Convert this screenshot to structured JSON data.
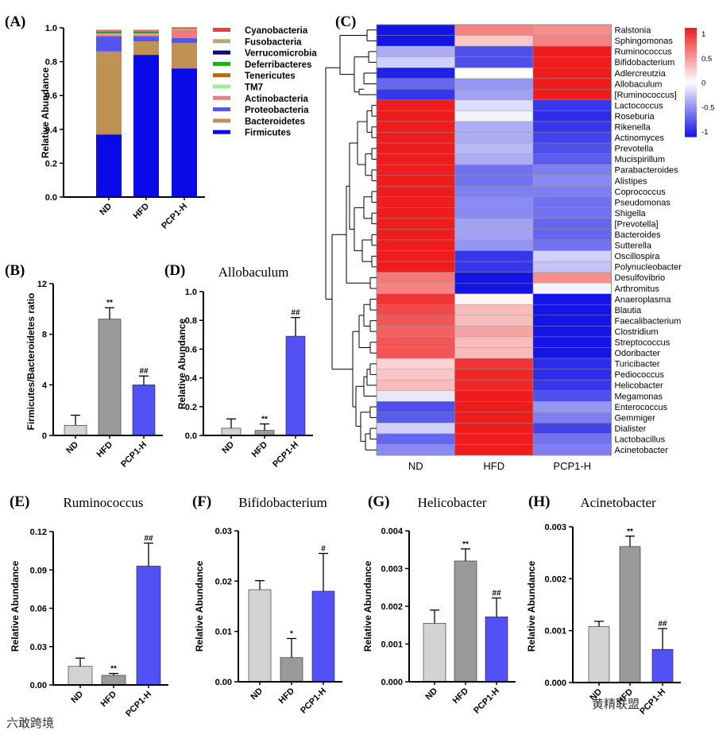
{
  "colors": {
    "nd": "#d3d3d3",
    "hfd": "#9a9a9a",
    "pcp": "#5151f5",
    "heat_low": "#1414e6",
    "heat_high": "#ee1c1c"
  },
  "groups": [
    "ND",
    "HFD",
    "PCP1-H"
  ],
  "panels": {
    "A": {
      "label": "(A)",
      "ylabel": "Relative Abundance"
    },
    "B": {
      "label": "(B)",
      "ylabel": "Firmicutes/Bacteroidetes ratio"
    },
    "C": {
      "label": "(C)"
    },
    "D": {
      "label": "(D)",
      "title": "Allobaculum",
      "ylabel": "Relative Abundance"
    },
    "E": {
      "label": "(E)",
      "title": "Ruminococcus",
      "ylabel": "Relative Abundance"
    },
    "F": {
      "label": "(F)",
      "title": "Bifidobacterium",
      "ylabel": "Relative Abundance"
    },
    "G": {
      "label": "(G)",
      "title": "Helicobacter",
      "ylabel": "Relative Abundance"
    },
    "H": {
      "label": "(H)",
      "title": "Acinetobacter",
      "ylabel": "Relative Abundance"
    }
  },
  "watermark": {
    "left": "六敢跨境",
    "right": "黄精联盟"
  },
  "chart_data": [
    {
      "id": "A",
      "type": "bar",
      "stacked": true,
      "ylabel": "Relative Abundance",
      "categories": [
        "ND",
        "HFD",
        "PCP1-H"
      ],
      "ylim": [
        0,
        1.0
      ],
      "yticks": [
        "0.0",
        "0.2",
        "0.4",
        "0.6",
        "0.8",
        "1.0"
      ],
      "series": [
        {
          "name": "Firmicutes",
          "color": "#0a0ae8",
          "values": [
            0.37,
            0.84,
            0.76
          ]
        },
        {
          "name": "Bacteroidetes",
          "color": "#c09155",
          "values": [
            0.49,
            0.08,
            0.15
          ]
        },
        {
          "name": "Proteobacteria",
          "color": "#5555ee",
          "values": [
            0.09,
            0.03,
            0.03
          ]
        },
        {
          "name": "Actinobacteria",
          "color": "#f27a7a",
          "values": [
            0.01,
            0.01,
            0.05
          ]
        },
        {
          "name": "TM7",
          "color": "#9af09a",
          "values": [
            0.005,
            0.005,
            0.002
          ]
        },
        {
          "name": "Tenericutes",
          "color": "#b86a1a",
          "values": [
            0.005,
            0.005,
            0.002
          ]
        },
        {
          "name": "Deferribacteres",
          "color": "#19b019",
          "values": [
            0.005,
            0.005,
            0.002
          ]
        },
        {
          "name": "Verrucomicrobia",
          "color": "#0a0a7a",
          "values": [
            0.003,
            0.003,
            0.002
          ]
        },
        {
          "name": "Fusobacteria",
          "color": "#b5a878",
          "values": [
            0.005,
            0.005,
            0.002
          ]
        },
        {
          "name": "Cyanobacteria",
          "color": "#e84040",
          "values": [
            0.005,
            0.005,
            0.003
          ]
        }
      ]
    },
    {
      "id": "B",
      "type": "bar",
      "ylabel": "Firmicutes/Bacteroidetes ratio",
      "categories": [
        "ND",
        "HFD",
        "PCP1-H"
      ],
      "ylim": [
        0,
        12
      ],
      "yticks": [
        "0",
        "4",
        "8",
        "12"
      ],
      "values": [
        0.8,
        9.2,
        4.0
      ],
      "errors": [
        0.8,
        0.9,
        0.7
      ],
      "annotations": [
        "",
        "**",
        "##"
      ]
    },
    {
      "id": "D",
      "type": "bar",
      "title": "Allobaculum",
      "ylabel": "Relative Abundance",
      "categories": [
        "ND",
        "HFD",
        "PCP1-H"
      ],
      "ylim": [
        0,
        1.0
      ],
      "yticks": [
        "0.0",
        "0.2",
        "0.4",
        "0.6",
        "0.8",
        "1.0"
      ],
      "values": [
        0.05,
        0.035,
        0.69
      ],
      "errors": [
        0.065,
        0.045,
        0.13
      ],
      "annotations": [
        "",
        "**",
        "##"
      ]
    },
    {
      "id": "E",
      "type": "bar",
      "title": "Ruminococcus",
      "ylabel": "Relative Abundance",
      "categories": [
        "ND",
        "HFD",
        "PCP1-H"
      ],
      "ylim": [
        0,
        0.12
      ],
      "yticks": [
        "0.00",
        "0.03",
        "0.06",
        "0.09",
        "0.12"
      ],
      "values": [
        0.0145,
        0.0075,
        0.093
      ],
      "errors": [
        0.0065,
        0.0015,
        0.018
      ],
      "annotations": [
        "",
        "**",
        "##"
      ]
    },
    {
      "id": "F",
      "type": "bar",
      "title": "Bifidobacterium",
      "ylabel": "Relative Abundance",
      "categories": [
        "ND",
        "HFD",
        "PCP1-H"
      ],
      "ylim": [
        0,
        0.03
      ],
      "yticks": [
        "0.00",
        "0.01",
        "0.02",
        "0.03"
      ],
      "values": [
        0.0183,
        0.0048,
        0.018
      ],
      "errors": [
        0.0018,
        0.0038,
        0.0075
      ],
      "annotations": [
        "",
        "*",
        "#"
      ]
    },
    {
      "id": "G",
      "type": "bar",
      "title": "Helicobacter",
      "ylabel": "Relative Abundance",
      "categories": [
        "ND",
        "HFD",
        "PCP1-H"
      ],
      "ylim": [
        0,
        0.004
      ],
      "yticks": [
        "0.000",
        "0.001",
        "0.002",
        "0.003",
        "0.004"
      ],
      "values": [
        0.00155,
        0.0032,
        0.00172
      ],
      "errors": [
        0.00035,
        0.00032,
        0.0005
      ],
      "annotations": [
        "",
        "**",
        "##"
      ]
    },
    {
      "id": "H",
      "type": "bar",
      "title": "Acinetobacter",
      "ylabel": "Relative Abundance",
      "categories": [
        "ND",
        "HFD",
        "PCP1-H"
      ],
      "ylim": [
        0,
        0.003
      ],
      "yticks": [
        "0.000",
        "0.001",
        "0.002",
        "0.003"
      ],
      "values": [
        0.00108,
        0.00262,
        0.00064
      ],
      "errors": [
        0.0001,
        0.0002,
        0.0004
      ],
      "annotations": [
        "",
        "**",
        "##"
      ]
    },
    {
      "id": "C",
      "type": "heatmap",
      "columns": [
        "ND",
        "HFD",
        "PCP1-H"
      ],
      "colorbar": {
        "ticks": [
          "1",
          "0.5",
          "0",
          "-0.5",
          "-1"
        ],
        "range": [
          -1,
          1
        ]
      },
      "rows": [
        "Ralstonia",
        "Sphingomonas",
        "Ruminococcus",
        "Bifidobacterium",
        "Adlercreutzia",
        "Allobaculum",
        "[Ruminococcus]",
        "Lactococcus",
        "Roseburia",
        "Rikenella",
        "Actinomyces",
        "Prevotella",
        "Mucispirillum",
        "Parabacteroides",
        "Alistipes",
        "Coprococcus",
        "Pseudomonas",
        "Shigella",
        "[Prevotella]",
        "Bacteroides",
        "Sutterella",
        "Oscillospira",
        "Polynucleobacter",
        "Desulfovibrio",
        "Arthromitus",
        "Anaeroplasma",
        "Blautia",
        "Faecalibacterium",
        "Clostridium",
        "Streptococcus",
        "Odoribacter",
        "Turicibacter",
        "Pediococcus",
        "Helicobacter",
        "Megamonas",
        "Enterococcus",
        "Gemmiger",
        "Dialister",
        "Lactobacillus",
        "Acinetobacter"
      ],
      "values": [
        [
          -1.0,
          0.55,
          0.5
        ],
        [
          -1.0,
          0.25,
          0.55
        ],
        [
          -0.35,
          -0.75,
          1.0
        ],
        [
          -0.2,
          -0.75,
          1.0
        ],
        [
          -0.95,
          0.0,
          1.0
        ],
        [
          -0.65,
          -0.45,
          1.0
        ],
        [
          -0.85,
          -0.4,
          1.0
        ],
        [
          1.0,
          -0.15,
          -0.85
        ],
        [
          1.0,
          -0.05,
          -0.9
        ],
        [
          1.0,
          -0.35,
          -0.85
        ],
        [
          1.0,
          -0.35,
          -0.8
        ],
        [
          1.0,
          -0.3,
          -0.75
        ],
        [
          1.0,
          -0.35,
          -0.7
        ],
        [
          1.0,
          -0.6,
          -0.55
        ],
        [
          1.0,
          -0.6,
          -0.5
        ],
        [
          1.0,
          -0.55,
          -0.55
        ],
        [
          1.0,
          -0.5,
          -0.6
        ],
        [
          1.0,
          -0.5,
          -0.6
        ],
        [
          1.0,
          -0.4,
          -0.65
        ],
        [
          1.0,
          -0.4,
          -0.65
        ],
        [
          1.0,
          -0.45,
          -0.6
        ],
        [
          1.0,
          -0.85,
          -0.2
        ],
        [
          1.0,
          -0.85,
          -0.25
        ],
        [
          0.6,
          -1.0,
          0.5
        ],
        [
          0.55,
          -1.0,
          -0.05
        ],
        [
          0.9,
          0.05,
          -1.0
        ],
        [
          0.8,
          0.3,
          -1.0
        ],
        [
          0.75,
          0.3,
          -1.0
        ],
        [
          0.7,
          0.4,
          -1.0
        ],
        [
          0.75,
          0.3,
          -1.0
        ],
        [
          0.75,
          0.3,
          -1.0
        ],
        [
          0.2,
          0.9,
          -0.9
        ],
        [
          0.25,
          0.95,
          -0.9
        ],
        [
          0.3,
          0.95,
          -0.85
        ],
        [
          -0.1,
          1.0,
          -0.75
        ],
        [
          -0.75,
          1.0,
          -0.45
        ],
        [
          -0.7,
          1.0,
          -0.55
        ],
        [
          -0.2,
          1.0,
          -0.8
        ],
        [
          -0.65,
          1.0,
          -0.6
        ],
        [
          -0.5,
          1.0,
          -0.55
        ]
      ]
    }
  ]
}
